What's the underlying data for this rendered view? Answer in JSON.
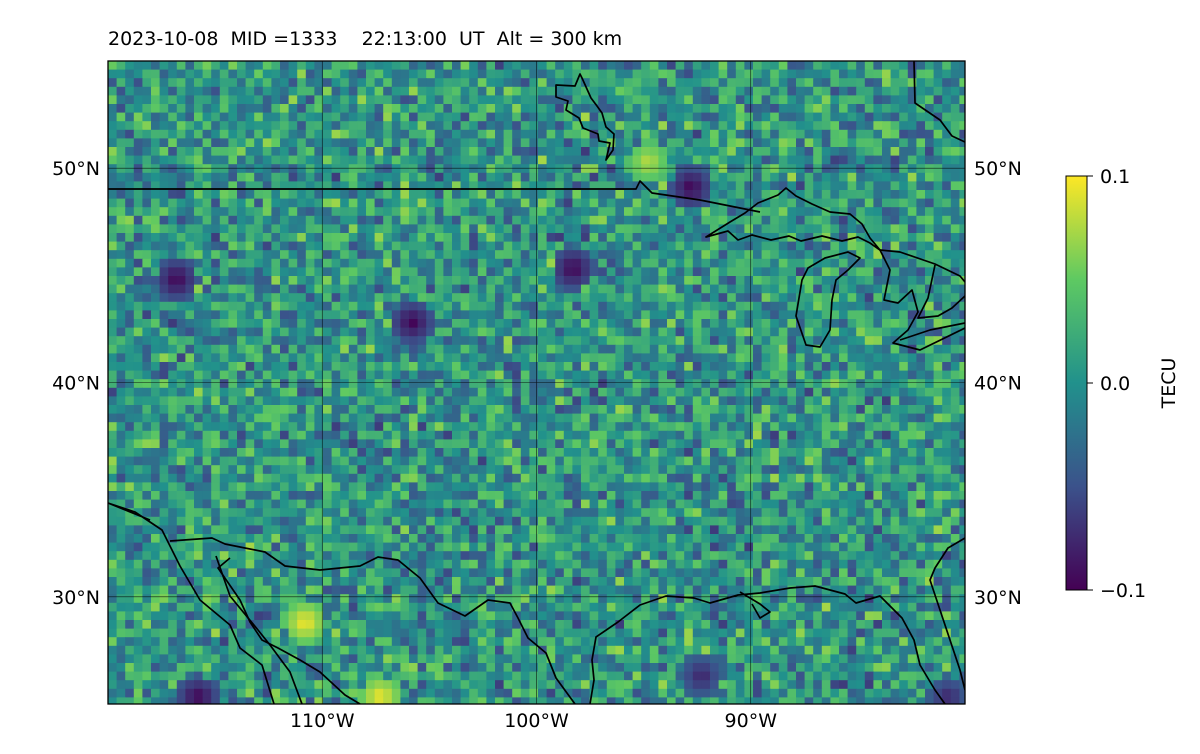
{
  "title": "2023-10-08  MID =1333    22:13:00  UT  Alt = 300 km",
  "map": {
    "extent": {
      "lon": [
        -120,
        -80
      ],
      "lat": [
        25,
        55
      ]
    },
    "grid_lons": [
      -110,
      -100,
      -90
    ],
    "grid_lats": [
      30,
      40,
      50
    ],
    "lon_labels": [
      "110°W",
      "100°W",
      "90°W"
    ],
    "lat_labels": [
      "30°N",
      "40°N",
      "50°N"
    ],
    "background": "TEC perturbation map, viridis colormap, mostly near 0 TECU with scattered +/- cells",
    "notable_cells": [
      {
        "lon": -111,
        "lat": 29,
        "value": 0.1
      },
      {
        "lon": -107.5,
        "lat": 25.5,
        "value": 0.1
      },
      {
        "lon": -95,
        "lat": 50.5,
        "value": 0.08
      },
      {
        "lon": -116,
        "lat": 25.5,
        "value": -0.1
      },
      {
        "lon": -117,
        "lat": 45,
        "value": -0.1
      },
      {
        "lon": -106,
        "lat": 43,
        "value": -0.1
      },
      {
        "lon": -98.5,
        "lat": 45.5,
        "value": -0.1
      },
      {
        "lon": -93,
        "lat": 49.3,
        "value": -0.1
      },
      {
        "lon": -92.5,
        "lat": 26.5,
        "value": -0.08
      },
      {
        "lon": -81,
        "lat": 25.5,
        "value": -0.08
      }
    ]
  },
  "colorbar": {
    "label": "TECU",
    "ticks": [
      "0.1",
      "0.0",
      "−0.1"
    ],
    "range": [
      -0.1,
      0.1
    ],
    "colormap": "viridis"
  },
  "colors": {
    "viridis": [
      "#440154",
      "#3b528b",
      "#21918c",
      "#5ec962",
      "#fde725"
    ]
  }
}
